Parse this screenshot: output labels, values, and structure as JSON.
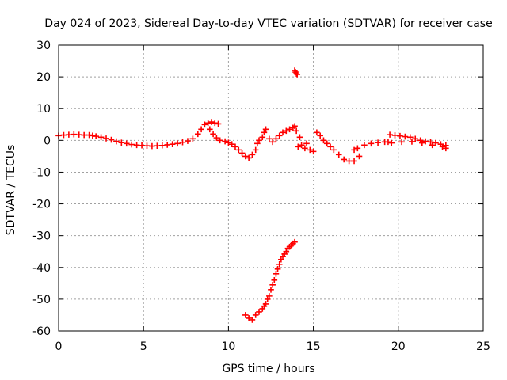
{
  "chart_data": {
    "type": "scatter",
    "title": "Day 024 of 2023, Sidereal Day-to-day VTEC variation (SDTVAR) for receiver case",
    "xlabel": "GPS time / hours",
    "ylabel": "SDTVAR / TECUs",
    "xlim": [
      0,
      25
    ],
    "ylim": [
      -60,
      30
    ],
    "xticks": [
      0,
      5,
      10,
      15,
      20,
      25
    ],
    "yticks": [
      -60,
      -50,
      -40,
      -30,
      -20,
      -10,
      0,
      10,
      20,
      30
    ],
    "grid": true,
    "marker": "plus",
    "color": "#ff0000",
    "series": [
      {
        "name": "SDTVAR",
        "points": [
          [
            0.0,
            1.5
          ],
          [
            0.3,
            1.7
          ],
          [
            0.6,
            1.8
          ],
          [
            0.9,
            1.9
          ],
          [
            1.2,
            1.8
          ],
          [
            1.5,
            1.7
          ],
          [
            1.8,
            1.7
          ],
          [
            2.0,
            1.5
          ],
          [
            2.2,
            1.3
          ],
          [
            2.5,
            1.0
          ],
          [
            2.8,
            0.6
          ],
          [
            3.1,
            0.2
          ],
          [
            3.4,
            -0.3
          ],
          [
            3.7,
            -0.7
          ],
          [
            4.0,
            -1.0
          ],
          [
            4.3,
            -1.3
          ],
          [
            4.6,
            -1.5
          ],
          [
            4.9,
            -1.6
          ],
          [
            5.2,
            -1.7
          ],
          [
            5.5,
            -1.8
          ],
          [
            5.8,
            -1.7
          ],
          [
            6.1,
            -1.6
          ],
          [
            6.4,
            -1.4
          ],
          [
            6.7,
            -1.2
          ],
          [
            7.0,
            -1.0
          ],
          [
            7.3,
            -0.6
          ],
          [
            7.6,
            -0.2
          ],
          [
            7.9,
            0.5
          ],
          [
            8.2,
            2.0
          ],
          [
            8.4,
            3.5
          ],
          [
            8.6,
            5.0
          ],
          [
            8.8,
            5.5
          ],
          [
            9.0,
            5.8
          ],
          [
            9.2,
            5.5
          ],
          [
            9.4,
            5.2
          ],
          [
            8.9,
            3.5
          ],
          [
            9.1,
            2.0
          ],
          [
            9.3,
            0.8
          ],
          [
            9.5,
            0.0
          ],
          [
            9.8,
            -0.3
          ],
          [
            10.0,
            -0.7
          ],
          [
            10.2,
            -1.2
          ],
          [
            10.4,
            -2.0
          ],
          [
            10.6,
            -3.0
          ],
          [
            10.8,
            -4.0
          ],
          [
            11.0,
            -5.0
          ],
          [
            11.2,
            -5.5
          ],
          [
            11.4,
            -4.5
          ],
          [
            11.6,
            -3.0
          ],
          [
            11.7,
            -1.0
          ],
          [
            11.8,
            0.0
          ],
          [
            12.0,
            1.0
          ],
          [
            12.1,
            2.5
          ],
          [
            12.2,
            3.5
          ],
          [
            12.4,
            0.5
          ],
          [
            12.6,
            -0.5
          ],
          [
            12.8,
            0.5
          ],
          [
            13.0,
            1.5
          ],
          [
            13.2,
            2.5
          ],
          [
            13.4,
            3.0
          ],
          [
            13.6,
            3.5
          ],
          [
            13.8,
            4.0
          ],
          [
            13.9,
            4.5
          ],
          [
            14.0,
            3.0
          ],
          [
            14.2,
            1.0
          ],
          [
            14.3,
            -1.5
          ],
          [
            14.5,
            -2.5
          ],
          [
            14.8,
            -3.0
          ],
          [
            15.0,
            -3.5
          ],
          [
            14.1,
            -2.0
          ],
          [
            14.6,
            -1.0
          ],
          [
            15.2,
            2.5
          ],
          [
            15.4,
            1.5
          ],
          [
            15.6,
            0.0
          ],
          [
            15.8,
            -1.0
          ],
          [
            16.0,
            -2.0
          ],
          [
            16.2,
            -3.0
          ],
          [
            16.5,
            -4.5
          ],
          [
            16.8,
            -6.0
          ],
          [
            17.1,
            -6.5
          ],
          [
            17.4,
            -6.5
          ],
          [
            17.7,
            -5.0
          ],
          [
            17.4,
            -3.0
          ],
          [
            17.6,
            -2.5
          ],
          [
            18.0,
            -1.5
          ],
          [
            18.4,
            -1.0
          ],
          [
            18.8,
            -0.7
          ],
          [
            19.2,
            -0.5
          ],
          [
            19.4,
            -0.5
          ],
          [
            19.5,
            1.8
          ],
          [
            19.8,
            1.6
          ],
          [
            20.1,
            1.4
          ],
          [
            20.4,
            1.2
          ],
          [
            20.7,
            1.0
          ],
          [
            21.0,
            0.5
          ],
          [
            21.3,
            0.0
          ],
          [
            21.6,
            -0.3
          ],
          [
            21.9,
            -0.5
          ],
          [
            22.2,
            -0.8
          ],
          [
            22.5,
            -1.2
          ],
          [
            22.8,
            -1.6
          ],
          [
            19.6,
            -0.8
          ],
          [
            20.2,
            -0.5
          ],
          [
            20.8,
            -0.4
          ],
          [
            21.4,
            -0.8
          ],
          [
            22.0,
            -1.5
          ],
          [
            22.6,
            -2.0
          ],
          [
            22.8,
            -2.5
          ],
          [
            13.9,
            22.0
          ],
          [
            13.95,
            21.5
          ],
          [
            14.0,
            21.0
          ],
          [
            14.05,
            20.8
          ],
          [
            11.0,
            -55.0
          ],
          [
            11.2,
            -56.0
          ],
          [
            11.4,
            -56.5
          ],
          [
            11.6,
            -55.0
          ],
          [
            11.8,
            -54.0
          ],
          [
            12.0,
            -53.0
          ],
          [
            12.2,
            -51.5
          ],
          [
            12.4,
            -49.0
          ],
          [
            12.6,
            -45.5
          ],
          [
            12.8,
            -42.0
          ],
          [
            13.0,
            -39.0
          ],
          [
            13.2,
            -36.5
          ],
          [
            13.4,
            -35.0
          ],
          [
            13.6,
            -33.5
          ],
          [
            13.8,
            -32.5
          ],
          [
            13.9,
            -32.0
          ],
          [
            12.5,
            -47.0
          ],
          [
            12.7,
            -44.0
          ],
          [
            12.9,
            -40.5
          ],
          [
            13.1,
            -37.5
          ],
          [
            13.3,
            -35.8
          ],
          [
            13.5,
            -34.0
          ],
          [
            13.7,
            -33.0
          ],
          [
            12.3,
            -50.0
          ],
          [
            12.1,
            -52.2
          ]
        ]
      }
    ]
  }
}
